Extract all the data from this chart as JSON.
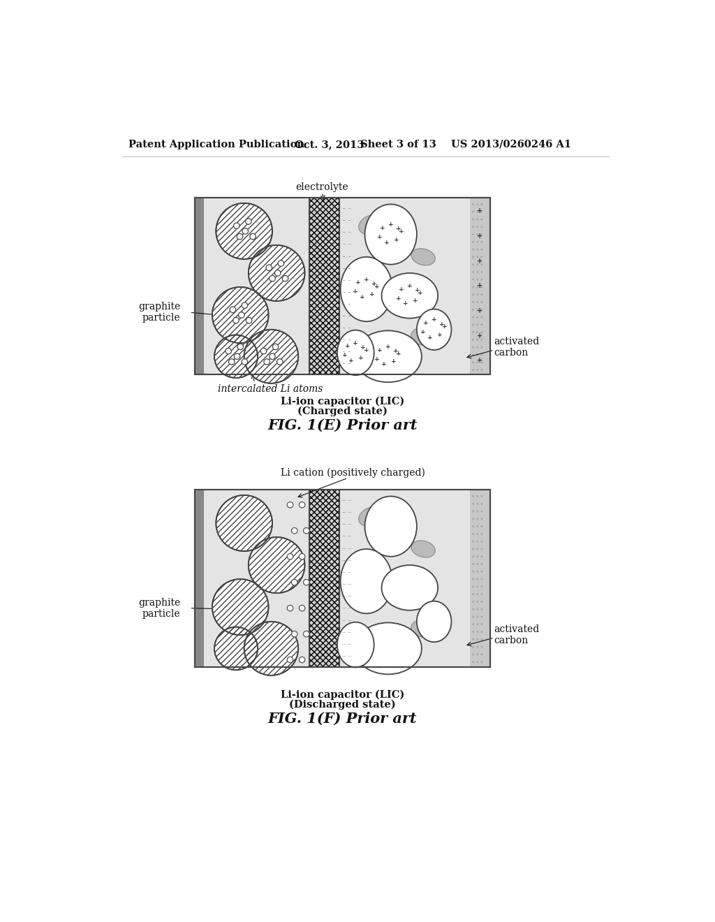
{
  "bg_color": "#f0f0f0",
  "page_bg": "#ffffff",
  "header_text": "Patent Application Publication",
  "header_date": "Oct. 3, 2013",
  "header_sheet": "Sheet 3 of 13",
  "header_patent": "US 2013/0260246 A1",
  "fig1e_title": "FIG. 1(E) Prior art",
  "fig1e_caption1": "Li-ion capacitor (LIC)",
  "fig1e_caption2": "(Charged state)",
  "fig1e_label_electrolyte": "electrolyte",
  "fig1e_label_graphite": "graphite\nparticle",
  "fig1e_label_intercalated": "intercalated Li atoms",
  "fig1e_label_activated": "activated\ncarbon",
  "fig1f_title": "FIG. 1(F) Prior art",
  "fig1f_caption1": "Li-ion capacitor (LIC)",
  "fig1f_caption2": "(Discharged state)",
  "fig1f_label_li_cation": "Li cation (positively charged)",
  "fig1f_label_graphite": "graphite\nparticle",
  "fig1f_label_activated": "activated\ncarbon",
  "text_color": "#111111",
  "electrode_bg": "#e0e0e0",
  "separator_bg": "#d8d8d8",
  "cc_right_bg": "#cccccc",
  "blob_gray": "#aaaaaa",
  "dark_line": "#444444"
}
